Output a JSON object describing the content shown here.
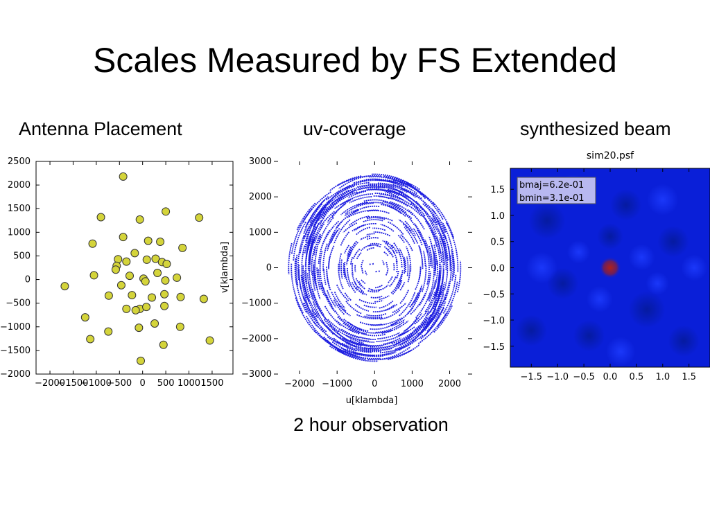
{
  "slide": {
    "title": "Scales Measured by FS Extended",
    "headings": {
      "antenna": "Antenna Placement",
      "uv": "uv-coverage",
      "beam": "synthesized beam"
    },
    "caption": "2 hour observation"
  },
  "colors": {
    "antenna_marker": "#d4d43a",
    "uv_points": "#1f1fe0",
    "beam_background": "#0a1fd8",
    "beam_peak": "#b0201a",
    "beam_legend_bg": "#b8b8f0"
  },
  "chart_data": [
    {
      "type": "scatter",
      "title": "",
      "xlabel": "",
      "ylabel": "",
      "xlim": [
        -2300,
        1950
      ],
      "ylim": [
        -2000,
        2500
      ],
      "xticks": [
        -2000,
        -1500,
        -1000,
        -500,
        0,
        500,
        1000,
        1500
      ],
      "xticklabels": [
        "−2000",
        "−1500",
        "−1000",
        "−500",
        "0",
        "500",
        "1000",
        "1500"
      ],
      "yticks": [
        -2000,
        -1500,
        -1000,
        -500,
        0,
        500,
        1000,
        1500,
        2000,
        2500
      ],
      "yticklabels": [
        "−2000",
        "−1500",
        "−1000",
        "−500",
        "0",
        "500",
        "1000",
        "1500",
        "2000",
        "2500"
      ],
      "grid": false,
      "points": [
        [
          -420,
          2180
        ],
        [
          500,
          1440
        ],
        [
          -900,
          1320
        ],
        [
          -60,
          1270
        ],
        [
          1220,
          1310
        ],
        [
          -1080,
          760
        ],
        [
          -420,
          900
        ],
        [
          120,
          820
        ],
        [
          380,
          800
        ],
        [
          860,
          670
        ],
        [
          -170,
          560
        ],
        [
          280,
          440
        ],
        [
          90,
          420
        ],
        [
          -530,
          430
        ],
        [
          -350,
          380
        ],
        [
          420,
          370
        ],
        [
          520,
          330
        ],
        [
          -560,
          290
        ],
        [
          -580,
          210
        ],
        [
          320,
          140
        ],
        [
          -1050,
          90
        ],
        [
          -280,
          80
        ],
        [
          740,
          40
        ],
        [
          20,
          20
        ],
        [
          60,
          -40
        ],
        [
          490,
          -20
        ],
        [
          -460,
          -120
        ],
        [
          -1680,
          -140
        ],
        [
          -730,
          -340
        ],
        [
          -230,
          -330
        ],
        [
          200,
          -380
        ],
        [
          820,
          -370
        ],
        [
          1320,
          -410
        ],
        [
          470,
          -560
        ],
        [
          470,
          -310
        ],
        [
          -350,
          -620
        ],
        [
          -60,
          -620
        ],
        [
          80,
          -580
        ],
        [
          -150,
          -650
        ],
        [
          -1240,
          -800
        ],
        [
          260,
          -930
        ],
        [
          -80,
          -1020
        ],
        [
          810,
          -1000
        ],
        [
          -740,
          -1100
        ],
        [
          -1130,
          -1260
        ],
        [
          450,
          -1380
        ],
        [
          1450,
          -1290
        ],
        [
          -40,
          -1720
        ]
      ]
    },
    {
      "type": "scatter",
      "title": "",
      "xlabel": "u[klambda]",
      "ylabel": "v[klambda]",
      "xlim": [
        -2500,
        2600
      ],
      "ylim": [
        -3000,
        3000
      ],
      "xticks": [
        -2000,
        -1000,
        0,
        1000,
        2000
      ],
      "xticklabels": [
        "−2000",
        "−1000",
        "0",
        "1000",
        "2000"
      ],
      "yticks": [
        -3000,
        -2000,
        -1000,
        0,
        1000,
        2000,
        3000
      ],
      "yticklabels": [
        "−3000",
        "−2000",
        "−1000",
        "0",
        "1000",
        "2000",
        "3000"
      ],
      "grid": false,
      "note_values": "uv tracks: each antenna pair traces an elliptical arc over a 2 hour observation",
      "track_radii_range": [
        100,
        2700
      ],
      "track_axis_ratio": [
        0.78,
        1.0
      ]
    },
    {
      "type": "heatmap",
      "title": "sim20.psf",
      "xlabel": "",
      "ylabel": "",
      "xlim": [
        -1.9,
        1.9
      ],
      "ylim": [
        -1.9,
        1.9
      ],
      "xticks": [
        -1.5,
        -1.0,
        -0.5,
        0.0,
        0.5,
        1.0,
        1.5
      ],
      "xticklabels": [
        "−1.5",
        "−1.0",
        "−0.5",
        "0.0",
        "0.5",
        "1.0",
        "1.5"
      ],
      "yticks": [
        1.5,
        1.0,
        0.5,
        0.0,
        -0.5,
        -1.0,
        -1.5
      ],
      "yticklabels": [
        "1.5",
        "1.0",
        "0.5",
        "0.0",
        "−0.5",
        "−1.0",
        "−1.5"
      ],
      "peak": [
        0.0,
        0.0
      ],
      "legend": [
        "bmaj=6.2e-01",
        "bmin=3.1e-01"
      ],
      "legend_position": "top-left"
    }
  ]
}
